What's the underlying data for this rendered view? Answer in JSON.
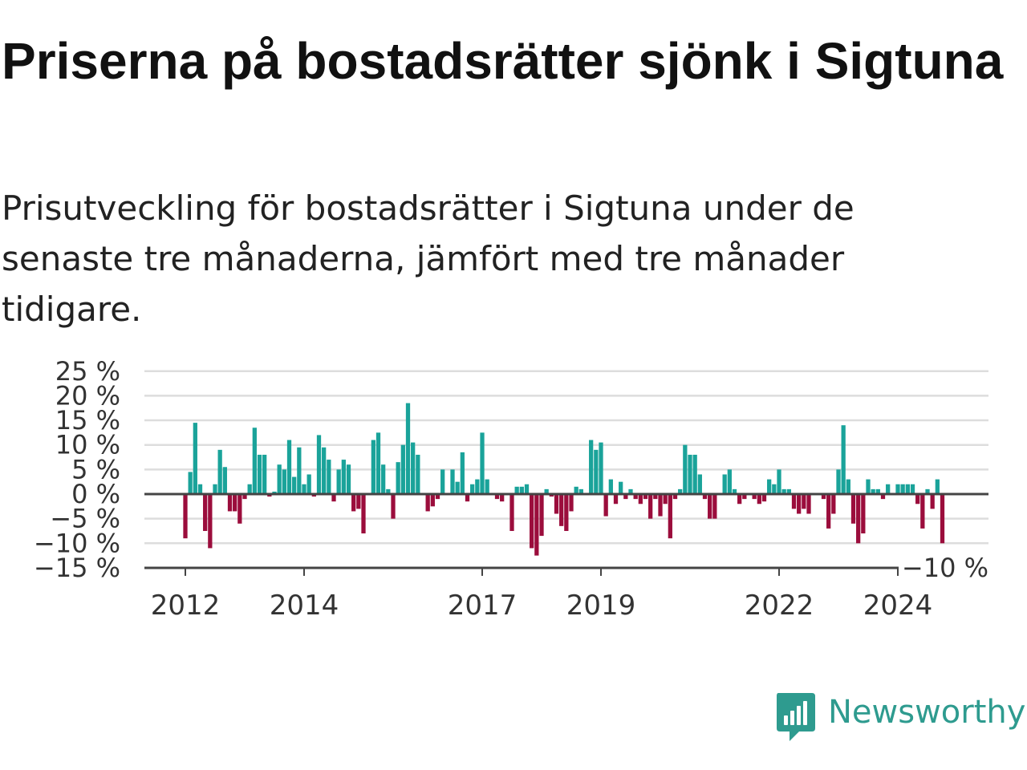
{
  "title": "Priserna på bostadsrätter sjönk i Sigtuna",
  "subtitle": "Prisutveckling för bostadsrätter i Sigtuna under de senaste tre månaderna, jämfört med tre månader tidigare.",
  "colors": {
    "positive": "#1aa39a",
    "negative": "#9b0d3c",
    "grid": "#dddddd",
    "zero_line": "#444444",
    "brand": "#2e9b8f"
  },
  "logo": {
    "text": "Newsworthy",
    "icon": "chart-speech-bubble-icon"
  },
  "chart_data": {
    "type": "bar",
    "title": "",
    "xlabel": "",
    "ylabel": "",
    "unit": "%",
    "ylim": [
      -15,
      25
    ],
    "y_ticks": [
      -15,
      -10,
      -5,
      0,
      5,
      10,
      15,
      20,
      25
    ],
    "y_tick_labels": [
      "−15 %",
      "−10 %",
      "−5 %",
      "0 %",
      "5 %",
      "10 %",
      "15 %",
      "20 %",
      "25 %"
    ],
    "x_ticks": [
      2012,
      2014,
      2017,
      2019,
      2022,
      2024
    ],
    "x_tick_labels": [
      "2012",
      "2014",
      "2017",
      "2019",
      "2022",
      "2024"
    ],
    "last_value_label": "−10 %",
    "grid": true,
    "start": "2012-01",
    "frequency": "monthly",
    "values": [
      -9,
      4.5,
      14.5,
      2,
      -7.5,
      -11,
      2,
      9,
      5.5,
      -3.5,
      -3.5,
      -6,
      -1,
      2,
      13.5,
      8,
      8,
      -0.5,
      0.5,
      6,
      5,
      11,
      3.5,
      9.5,
      2,
      4,
      -0.5,
      12,
      9.5,
      7,
      -1.5,
      5,
      7,
      6,
      -3.5,
      -3,
      -8,
      0,
      11,
      12.5,
      6,
      1,
      -5,
      6.5,
      10,
      18.5,
      10.5,
      8,
      0,
      -3.5,
      -2.5,
      -1,
      5,
      0,
      5,
      2.5,
      8.5,
      -1.5,
      2,
      3,
      12.5,
      3,
      0,
      -1,
      -1.5,
      0,
      -7.5,
      1.5,
      1.5,
      2,
      -11,
      -12.5,
      -8.5,
      1,
      -0.5,
      -4,
      -6.5,
      -7.5,
      -3.5,
      1.5,
      1,
      0,
      11,
      9,
      10.5,
      -4.5,
      3,
      -2,
      2.5,
      -1,
      1,
      -1,
      -2,
      -1,
      -5,
      -1,
      -4.5,
      -2,
      -9,
      -1,
      1,
      10,
      8,
      8,
      4,
      -1,
      -5,
      -5,
      0,
      4,
      5,
      1,
      -2,
      -1,
      0,
      -1,
      -2,
      -1.5,
      3,
      2,
      5,
      1,
      1,
      -3,
      -4,
      -3,
      -4,
      0,
      0,
      -1,
      -7,
      -4,
      5,
      14,
      3,
      -6,
      -10,
      -8,
      3,
      1,
      1,
      -1,
      2,
      0,
      2,
      2,
      2,
      2,
      -2,
      -7,
      1,
      -3,
      3,
      -10
    ]
  }
}
